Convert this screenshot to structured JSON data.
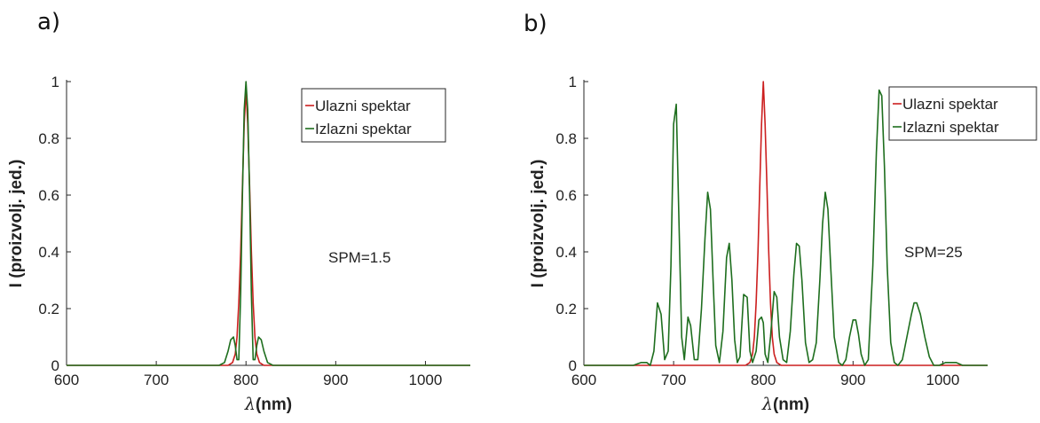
{
  "chart_data": [
    {
      "panel_label": "a)",
      "type": "line",
      "xlabel_prefix": "λ",
      "xlabel_suffix": "(nm)",
      "ylabel": "I (proizvolj. jed.)",
      "xlim": [
        600,
        1050
      ],
      "ylim": [
        0,
        1
      ],
      "xticks": [
        "600",
        "700",
        "800",
        "900",
        "1000"
      ],
      "yticks": [
        "0",
        "0.2",
        "0.4",
        "0.6",
        "0.8",
        "1"
      ],
      "legend_position": "top-right",
      "annotation": "SPM=1.5",
      "series": [
        {
          "name": "Ulazni spektar",
          "color": "#cc1f1f",
          "x": [
            600,
            770,
            780,
            785,
            788,
            790,
            792,
            794,
            796,
            798,
            800,
            802,
            804,
            806,
            808,
            810,
            812,
            815,
            820,
            830,
            1050
          ],
          "y": [
            0,
            0,
            0,
            0.01,
            0.04,
            0.1,
            0.22,
            0.4,
            0.63,
            0.85,
            0.97,
            0.85,
            0.63,
            0.4,
            0.22,
            0.1,
            0.04,
            0.01,
            0,
            0,
            0
          ]
        },
        {
          "name": "Izlazni spektar",
          "color": "#1e6e1e",
          "x": [
            600,
            770,
            776,
            780,
            783,
            786,
            788,
            790,
            792,
            794,
            796,
            798,
            800,
            802,
            804,
            806,
            808,
            810,
            812,
            814,
            817,
            820,
            824,
            830,
            1050
          ],
          "y": [
            0,
            0,
            0.01,
            0.05,
            0.09,
            0.1,
            0.07,
            0.02,
            0.02,
            0.25,
            0.6,
            0.9,
            1.0,
            0.9,
            0.6,
            0.25,
            0.02,
            0.02,
            0.07,
            0.1,
            0.09,
            0.05,
            0.01,
            0,
            0
          ]
        }
      ]
    },
    {
      "panel_label": "b)",
      "type": "line",
      "xlabel_prefix": "λ",
      "xlabel_suffix": "(nm)",
      "ylabel": "I (proizvolj. jed.)",
      "xlim": [
        600,
        1050
      ],
      "ylim": [
        0,
        1
      ],
      "xticks": [
        "600",
        "700",
        "800",
        "900",
        "1000"
      ],
      "yticks": [
        "0",
        "0.2",
        "0.4",
        "0.6",
        "0.8",
        "1"
      ],
      "legend_position": "top-right",
      "annotation": "SPM=25",
      "series": [
        {
          "name": "Ulazni spektar",
          "color": "#cc1f1f",
          "x": [
            600,
            770,
            780,
            785,
            788,
            790,
            792,
            794,
            796,
            798,
            800,
            802,
            804,
            806,
            808,
            810,
            812,
            815,
            820,
            830,
            1050
          ],
          "y": [
            0,
            0,
            0,
            0.01,
            0.04,
            0.1,
            0.22,
            0.4,
            0.63,
            0.85,
            1.0,
            0.85,
            0.63,
            0.4,
            0.22,
            0.1,
            0.04,
            0.01,
            0,
            0,
            0
          ]
        },
        {
          "name": "Izlazni spektar",
          "color": "#1e6e1e",
          "x": [
            600,
            655,
            664,
            670,
            674,
            678,
            682,
            686,
            690,
            694,
            697,
            700,
            703,
            706,
            709,
            712,
            716,
            719,
            723,
            727,
            731,
            735,
            738,
            741,
            744,
            747,
            751,
            755,
            759,
            762,
            765,
            768,
            771,
            774,
            778,
            782,
            785,
            788,
            792,
            795,
            798,
            800,
            802,
            805,
            808,
            812,
            815,
            818,
            822,
            826,
            830,
            834,
            837,
            840,
            843,
            847,
            851,
            855,
            859,
            863,
            866,
            869,
            872,
            875,
            879,
            884,
            888,
            892,
            896,
            900,
            903,
            906,
            909,
            913,
            917,
            922,
            926,
            929,
            932,
            935,
            938,
            942,
            946,
            950,
            955,
            960,
            965,
            968,
            971,
            975,
            980,
            985,
            990,
            996,
            1003,
            1009,
            1015,
            1022,
            1030,
            1050
          ],
          "y": [
            0,
            0,
            0.01,
            0.01,
            0.0,
            0.05,
            0.22,
            0.18,
            0.02,
            0.05,
            0.35,
            0.85,
            0.92,
            0.5,
            0.1,
            0.02,
            0.17,
            0.14,
            0.02,
            0.02,
            0.2,
            0.45,
            0.61,
            0.55,
            0.3,
            0.07,
            0.01,
            0.12,
            0.38,
            0.43,
            0.3,
            0.09,
            0.01,
            0.03,
            0.25,
            0.24,
            0.05,
            0.01,
            0.05,
            0.16,
            0.17,
            0.15,
            0.04,
            0.01,
            0.1,
            0.26,
            0.24,
            0.1,
            0.02,
            0.01,
            0.12,
            0.32,
            0.43,
            0.42,
            0.3,
            0.08,
            0.01,
            0.02,
            0.08,
            0.3,
            0.5,
            0.61,
            0.55,
            0.35,
            0.1,
            0.01,
            0.0,
            0.02,
            0.1,
            0.16,
            0.16,
            0.11,
            0.04,
            0.0,
            0.02,
            0.35,
            0.75,
            0.97,
            0.95,
            0.7,
            0.35,
            0.08,
            0.01,
            0.0,
            0.02,
            0.1,
            0.18,
            0.22,
            0.22,
            0.18,
            0.1,
            0.03,
            0.0,
            0.0,
            0.01,
            0.01,
            0.01,
            0.0,
            0,
            0
          ]
        }
      ]
    }
  ]
}
